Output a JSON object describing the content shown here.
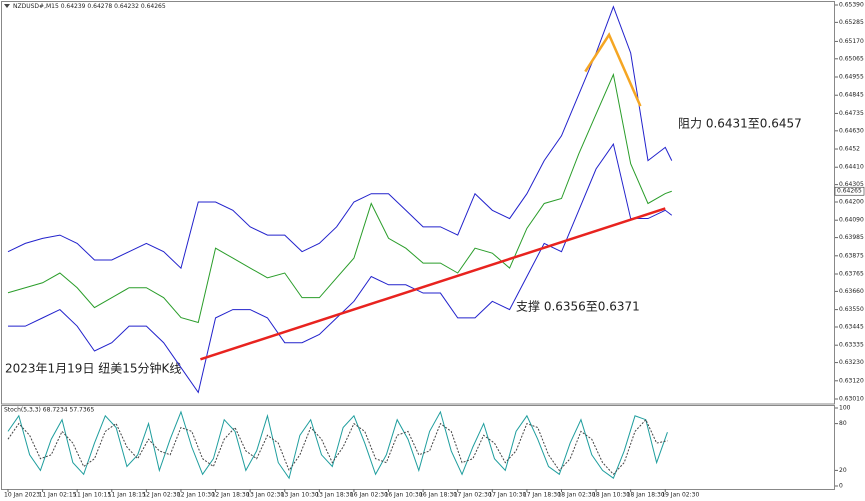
{
  "chart_data": [
    {
      "type": "line",
      "title": "NZDUSD#,M15  0.64239 0.64278 0.64232 0.64265",
      "xlim": [
        -8,
        757
      ],
      "ylim": [
        0.6301,
        0.6539
      ],
      "yticks": [
        {
          "value": 0.6539,
          "label": "0.65390"
        },
        0.65285,
        {
          "value": 0.6517,
          "label": "0.65170"
        },
        0.65065,
        0.64955,
        0.64845,
        0.64735,
        {
          "value": 0.6463,
          "label": "0.64630"
        },
        0.6452,
        {
          "value": 0.6441,
          "label": "0.64410"
        },
        0.64305,
        {
          "value": 0.642,
          "label": "0.64200"
        },
        {
          "value": 0.6409,
          "label": "0.64090"
        },
        0.63985,
        0.63875,
        0.63765,
        {
          "value": 0.6366,
          "label": "0.63660"
        },
        {
          "value": 0.6355,
          "label": "0.63550"
        },
        0.63445,
        0.63335,
        {
          "value": 0.6323,
          "label": "0.63230"
        },
        {
          "value": 0.6312,
          "label": "0.63120"
        },
        {
          "value": 0.6301,
          "label": "0.63010"
        }
      ],
      "series": [
        {
          "color": "#2a9d2a",
          "x": [
            0,
            16,
            32,
            48,
            64,
            80,
            96,
            112,
            128,
            144,
            160,
            176,
            192,
            208,
            224,
            240,
            256,
            272,
            288,
            304,
            320,
            336,
            352,
            368,
            384,
            400,
            416,
            432,
            448,
            464,
            480,
            496,
            512,
            528,
            544,
            560,
            576,
            592,
            608,
            614
          ],
          "values": [
            0.63652,
            0.63682,
            0.63712,
            0.63771,
            0.63682,
            0.63562,
            0.63622,
            0.63682,
            0.63682,
            0.63622,
            0.63502,
            0.63472,
            0.63921,
            0.63861,
            0.63801,
            0.63742,
            0.63771,
            0.63622,
            0.63622,
            0.63742,
            0.63861,
            0.64191,
            0.63981,
            0.63921,
            0.63831,
            0.63831,
            0.63771,
            0.63921,
            0.63891,
            0.63801,
            0.64041,
            0.64191,
            0.64221,
            0.64491,
            0.64731,
            0.6497,
            0.64431,
            0.64191,
            0.64251,
            0.64265
          ]
        },
        {
          "color": "#2222cc",
          "x": [
            0,
            16,
            32,
            48,
            64,
            80,
            96,
            112,
            128,
            144,
            160,
            176,
            192,
            208,
            224,
            240,
            256,
            272,
            288,
            304,
            320,
            336,
            352,
            368,
            384,
            400,
            416,
            432,
            448,
            464,
            480,
            496,
            512,
            528,
            544,
            560,
            576,
            592,
            608,
            614
          ],
          "values": [
            0.639,
            0.6395,
            0.6398,
            0.64,
            0.6395,
            0.6385,
            0.6385,
            0.639,
            0.6395,
            0.639,
            0.638,
            0.642,
            0.642,
            0.6415,
            0.6405,
            0.64,
            0.64,
            0.639,
            0.6395,
            0.6405,
            0.642,
            0.6425,
            0.6425,
            0.6415,
            0.6405,
            0.6405,
            0.64,
            0.6425,
            0.6415,
            0.641,
            0.6425,
            0.6445,
            0.646,
            0.6485,
            0.651,
            0.6538,
            0.651,
            0.6445,
            0.6453,
            0.6445
          ]
        },
        {
          "color": "#2222cc",
          "x": [
            0,
            16,
            32,
            48,
            64,
            80,
            96,
            112,
            128,
            144,
            160,
            176,
            192,
            208,
            224,
            240,
            256,
            272,
            288,
            304,
            320,
            336,
            352,
            368,
            384,
            400,
            416,
            432,
            448,
            464,
            480,
            496,
            512,
            528,
            544,
            560,
            576,
            592,
            608,
            614
          ],
          "values": [
            0.6345,
            0.6345,
            0.635,
            0.6355,
            0.6345,
            0.633,
            0.6335,
            0.6345,
            0.6345,
            0.6335,
            0.632,
            0.6305,
            0.635,
            0.6355,
            0.6355,
            0.635,
            0.6335,
            0.6335,
            0.634,
            0.635,
            0.636,
            0.6375,
            0.637,
            0.637,
            0.6365,
            0.6365,
            0.635,
            0.635,
            0.636,
            0.6355,
            0.6375,
            0.6395,
            0.639,
            0.6415,
            0.644,
            0.6455,
            0.641,
            0.641,
            0.6415,
            0.6412
          ]
        }
      ],
      "trendlines": [
        {
          "color": "#e8231f",
          "x": [
            178,
            608
          ],
          "values": [
            0.6325,
            0.64161
          ]
        },
        {
          "color": "#f5a623",
          "x": [
            534,
            556,
            585
          ],
          "values": [
            0.64988,
            0.6521,
            0.64779
          ]
        }
      ],
      "annotations": [
        "阻力 0.6431至0.6457",
        "支撑 0.6356至0.6371",
        "2023年1月19日 纽美15分钟K线"
      ]
    },
    {
      "type": "line",
      "title": "Stoch(5,3,3) 68.7234 57.7365",
      "xlim": [
        -8,
        757
      ],
      "ylim": [
        0,
        100
      ],
      "yticks": [
        100,
        80,
        20,
        0
      ],
      "xticks": [
        {
          "value": 0,
          "label": "10 Jan 2023"
        },
        {
          "value": 32,
          "label": "11 Jan 02:15"
        },
        {
          "value": 64,
          "label": "11 Jan 10:15"
        },
        {
          "value": 96,
          "label": "11 Jan 18:15"
        },
        {
          "value": 128,
          "label": "12 Jan 02:30"
        },
        {
          "value": 160,
          "label": "12 Jan 10:30"
        },
        {
          "value": 192,
          "label": "12 Jan 18:30"
        },
        {
          "value": 224,
          "label": "13 Jan 02:30"
        },
        {
          "value": 256,
          "label": "13 Jan 10:30"
        },
        {
          "value": 288,
          "label": "13 Jan 18:30"
        },
        {
          "value": 320,
          "label": "16 Jan 02:30"
        },
        {
          "value": 352,
          "label": "16 Jan 10:30"
        },
        {
          "value": 384,
          "label": "16 Jan 18:30"
        },
        {
          "value": 416,
          "label": "17 Jan 02:30"
        },
        {
          "value": 448,
          "label": "17 Jan 10:30"
        },
        {
          "value": 480,
          "label": "17 Jan 18:30"
        },
        {
          "value": 512,
          "label": "18 Jan 02:30"
        },
        {
          "value": 544,
          "label": "18 Jan 10:30"
        },
        {
          "value": 576,
          "label": "18 Jan 18:30"
        },
        {
          "value": 608,
          "label": "19 Jan 02:30"
        }
      ],
      "series": [
        {
          "color": "#1f9e9e",
          "x": [
            0,
            10,
            20,
            30,
            40,
            50,
            60,
            70,
            80,
            90,
            100,
            110,
            120,
            130,
            140,
            150,
            160,
            170,
            180,
            190,
            200,
            210,
            220,
            230,
            240,
            250,
            260,
            270,
            280,
            290,
            300,
            310,
            320,
            330,
            340,
            350,
            360,
            370,
            380,
            390,
            400,
            410,
            420,
            430,
            440,
            450,
            460,
            470,
            480,
            490,
            500,
            510,
            520,
            530,
            540,
            550,
            560,
            570,
            580,
            590,
            600,
            610
          ],
          "values": [
            70,
            90,
            40,
            20,
            60,
            85,
            30,
            15,
            55,
            90,
            75,
            25,
            40,
            80,
            20,
            60,
            95,
            50,
            15,
            35,
            85,
            70,
            20,
            45,
            90,
            30,
            10,
            65,
            85,
            40,
            25,
            75,
            90,
            55,
            15,
            40,
            85,
            60,
            20,
            70,
            95,
            45,
            15,
            50,
            80,
            35,
            20,
            70,
            90,
            60,
            25,
            15,
            55,
            85,
            40,
            20,
            10,
            45,
            90,
            85,
            30,
            69
          ]
        },
        {
          "color": "#444444",
          "dashed": true,
          "x": [
            0,
            10,
            20,
            30,
            40,
            50,
            60,
            70,
            80,
            90,
            100,
            110,
            120,
            130,
            140,
            150,
            160,
            170,
            180,
            190,
            200,
            210,
            220,
            230,
            240,
            250,
            260,
            270,
            280,
            290,
            300,
            310,
            320,
            330,
            340,
            350,
            360,
            370,
            380,
            390,
            400,
            410,
            420,
            430,
            440,
            450,
            460,
            470,
            480,
            490,
            500,
            510,
            520,
            530,
            540,
            550,
            560,
            570,
            580,
            590,
            600,
            610
          ],
          "values": [
            60,
            80,
            65,
            35,
            40,
            70,
            55,
            25,
            35,
            70,
            80,
            50,
            35,
            60,
            45,
            40,
            75,
            70,
            35,
            25,
            60,
            75,
            45,
            35,
            65,
            55,
            20,
            40,
            75,
            60,
            30,
            50,
            80,
            70,
            35,
            30,
            65,
            70,
            40,
            45,
            80,
            70,
            30,
            35,
            65,
            55,
            30,
            45,
            80,
            75,
            40,
            20,
            35,
            70,
            60,
            30,
            15,
            30,
            70,
            85,
            55,
            58
          ]
        }
      ]
    }
  ]
}
